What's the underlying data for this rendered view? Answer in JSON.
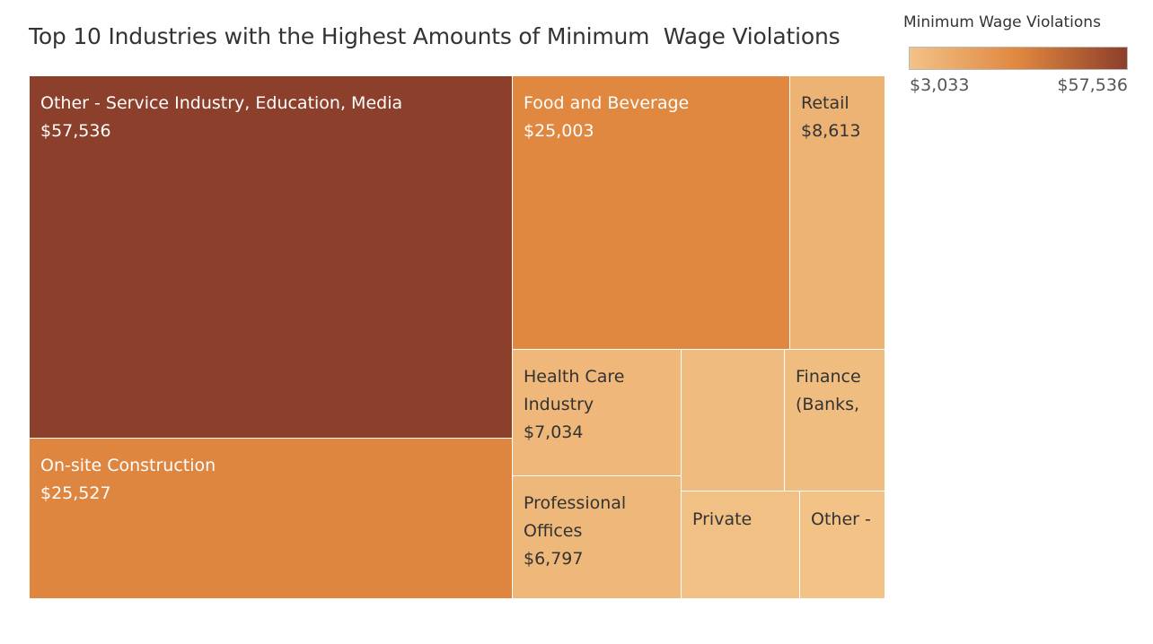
{
  "title": "Top 10 Industries with the Highest Amounts of Minimum  Wage Violations",
  "chart_data": {
    "type": "treemap",
    "title": "Top 10 Industries with the Highest Amounts of Minimum  Wage Violations",
    "legend": {
      "title": "Minimum Wage Violations",
      "min_label": "$3,033",
      "max_label": "$57,536",
      "min_value": 3033,
      "max_value": 57536,
      "color_low": "#f2c287",
      "color_mid": "#e08740",
      "color_high": "#8c3f2a",
      "placement": "top-right"
    },
    "items": [
      {
        "id": "other-service",
        "lines": [
          "Other - Service Industry, Education, Media",
          "$57,536"
        ],
        "value": 57536
      },
      {
        "id": "construction",
        "lines": [
          "On-site Construction",
          "$25,527"
        ],
        "value": 25527
      },
      {
        "id": "food-beverage",
        "lines": [
          "Food and Beverage",
          "$25,003"
        ],
        "value": 25003
      },
      {
        "id": "retail",
        "lines": [
          "Retail",
          "$8,613"
        ],
        "value": 8613
      },
      {
        "id": "health-care",
        "lines": [
          "Health Care",
          "Industry",
          "$7,034"
        ],
        "value": 7034
      },
      {
        "id": "professional",
        "lines": [
          "Professional",
          "Offices",
          "$6,797"
        ],
        "value": 6797
      },
      {
        "id": "unlabeled",
        "lines": [],
        "value": 5600
      },
      {
        "id": "finance",
        "lines": [
          "Finance",
          "(Banks,"
        ],
        "value": 4900
      },
      {
        "id": "private",
        "lines": [
          "Private"
        ],
        "value": 3900
      },
      {
        "id": "other",
        "lines": [
          "Other -"
        ],
        "value": 3033
      }
    ]
  }
}
